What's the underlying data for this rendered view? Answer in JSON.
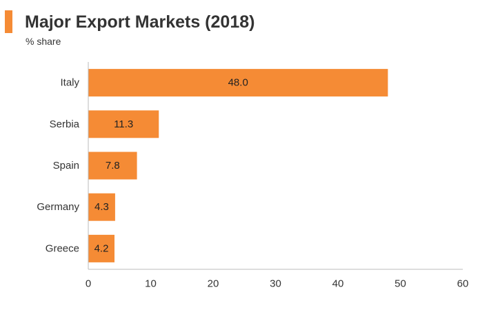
{
  "header": {
    "title": "Major Export Markets (2018)",
    "subtitle": "% share"
  },
  "colors": {
    "bar": "#f58b35",
    "accent": "#f58b35",
    "axis": "#bbbbbb"
  },
  "chart_data": {
    "type": "bar",
    "orientation": "horizontal",
    "title": "Major Export Markets (2018)",
    "subtitle": "% share",
    "categories": [
      "Italy",
      "Serbia",
      "Spain",
      "Germany",
      "Greece"
    ],
    "values": [
      48.0,
      11.3,
      7.8,
      4.3,
      4.2
    ],
    "data_labels": [
      "48.0",
      "11.3",
      "7.8",
      "4.3",
      "4.2"
    ],
    "xlim": [
      0,
      60
    ],
    "xticks": [
      0,
      10,
      20,
      30,
      40,
      50,
      60
    ],
    "xlabel": "",
    "ylabel": "",
    "grid": false,
    "legend": "none"
  }
}
